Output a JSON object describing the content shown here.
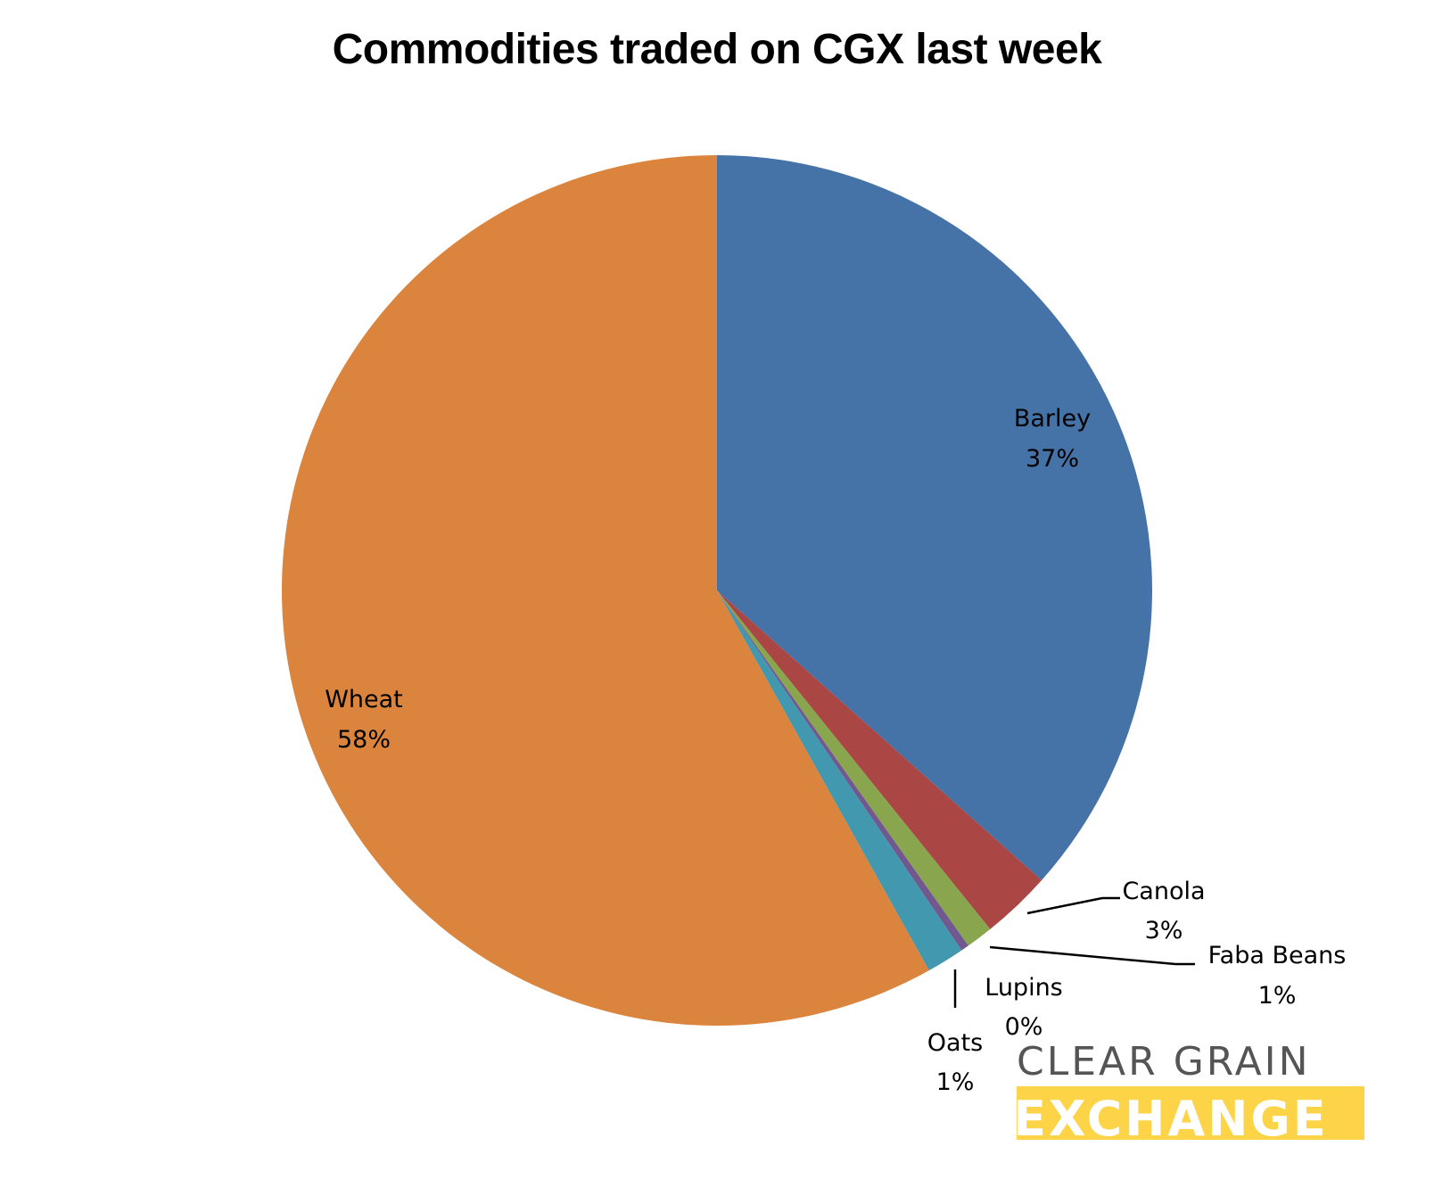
{
  "chart_data": {
    "type": "pie",
    "title": "Commodities traded on CGX last week",
    "slices": [
      {
        "label": "Barley",
        "value": 36.6,
        "display": "37%",
        "color": "#4572a7"
      },
      {
        "label": "Canola",
        "value": 2.6,
        "display": "3%",
        "color": "#aa4643"
      },
      {
        "label": "Faba Beans",
        "value": 1.0,
        "display": "1%",
        "color": "#89a54e"
      },
      {
        "label": "Lupins",
        "value": 0.3,
        "display": "0%",
        "color": "#71588f"
      },
      {
        "label": "Oats",
        "value": 1.4,
        "display": "1%",
        "color": "#4198af"
      },
      {
        "label": "Wheat",
        "value": 58.1,
        "display": "58%",
        "color": "#db843d"
      }
    ],
    "start_angle_deg": 0,
    "direction": "clockwise",
    "legend": "none (data labels with leader lines)"
  },
  "logo": {
    "line1": "CLEAR GRAIN",
    "line2": "EXCHANGE",
    "line1_color": "#555555",
    "line2_bg": "#fdd347"
  }
}
